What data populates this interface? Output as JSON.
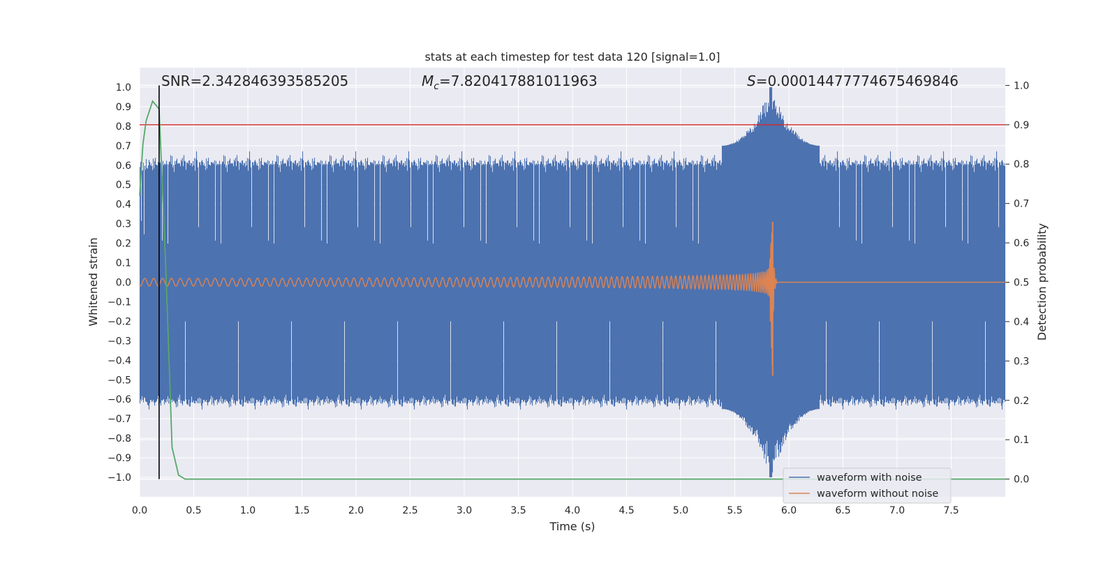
{
  "chart_data": {
    "type": "line",
    "title": "stats at each timestep for test data 120 [signal=1.0]",
    "xlabel": "Time (s)",
    "ylabel_left": "Whitened strain",
    "ylabel_right": "Detection probability",
    "xlim": [
      0.0,
      8.0
    ],
    "ylim_left": [
      -1.1,
      1.1
    ],
    "ylim_right": [
      -0.045,
      1.045
    ],
    "x_ticks": [
      "0.0",
      "0.5",
      "1.0",
      "1.5",
      "2.0",
      "2.5",
      "3.0",
      "3.5",
      "4.0",
      "4.5",
      "5.0",
      "5.5",
      "6.0",
      "6.5",
      "7.0",
      "7.5"
    ],
    "x_tick_values": [
      0.0,
      0.5,
      1.0,
      1.5,
      2.0,
      2.5,
      3.0,
      3.5,
      4.0,
      4.5,
      5.0,
      5.5,
      6.0,
      6.5,
      7.0,
      7.5
    ],
    "y_left_ticks": [
      "1.0",
      "0.9",
      "0.8",
      "0.7",
      "0.6",
      "0.5",
      "0.4",
      "0.3",
      "0.2",
      "0.1",
      "0.0",
      "−0.1",
      "−0.2",
      "−0.3",
      "−0.4",
      "−0.5",
      "−0.6",
      "−0.7",
      "−0.8",
      "−0.9",
      "−1.0"
    ],
    "y_left_tick_values": [
      1.0,
      0.9,
      0.8,
      0.7,
      0.6,
      0.5,
      0.4,
      0.3,
      0.2,
      0.1,
      0.0,
      -0.1,
      -0.2,
      -0.3,
      -0.4,
      -0.5,
      -0.6,
      -0.7,
      -0.8,
      -0.9,
      -1.0
    ],
    "y_right_ticks": [
      "1.0",
      "0.9",
      "0.8",
      "0.7",
      "0.6",
      "0.5",
      "0.4",
      "0.3",
      "0.2",
      "0.1",
      "0.0"
    ],
    "y_right_tick_values": [
      1.0,
      0.9,
      0.8,
      0.7,
      0.6,
      0.5,
      0.4,
      0.3,
      0.2,
      0.1,
      0.0
    ],
    "annotations": {
      "snr": "SNR=2.342846393585205",
      "mc_symbol": "M",
      "mc_sub": "c",
      "mc_value": "=7.820417881011963",
      "s_symbol": "S",
      "s_value": "=0.00014477774675469846"
    },
    "threshold_line": {
      "axis": "right",
      "y": 0.9,
      "color": "#d62728"
    },
    "vertical_marker": {
      "x": 0.18,
      "color": "#000000"
    },
    "series": [
      {
        "name": "waveform with noise",
        "color": "#4c72b0",
        "axis": "left",
        "envelope": {
          "typical_max": 0.7,
          "typical_min": -0.65,
          "peak_max": 1.0,
          "peak_min": -1.0,
          "peak_x": 5.83
        }
      },
      {
        "name": "waveform without noise",
        "color": "#dd8452",
        "axis": "left",
        "chirp": {
          "start_amplitude": 0.02,
          "peak_amplitude_pos": 0.31,
          "peak_amplitude_neg": -0.48,
          "merger_x": 5.85
        }
      },
      {
        "name": "detection probability",
        "color": "#55a868",
        "axis": "right",
        "x": [
          0.0,
          0.03,
          0.06,
          0.12,
          0.18,
          0.24,
          0.3,
          0.36,
          0.42,
          8.0
        ],
        "y": [
          0.72,
          0.85,
          0.91,
          0.96,
          0.94,
          0.55,
          0.08,
          0.01,
          0.0,
          0.0
        ]
      }
    ],
    "legend": {
      "placement": "lower-right",
      "entries": [
        "waveform with noise",
        "waveform without noise"
      ]
    },
    "grid": true,
    "background": "#eaeaf2"
  }
}
